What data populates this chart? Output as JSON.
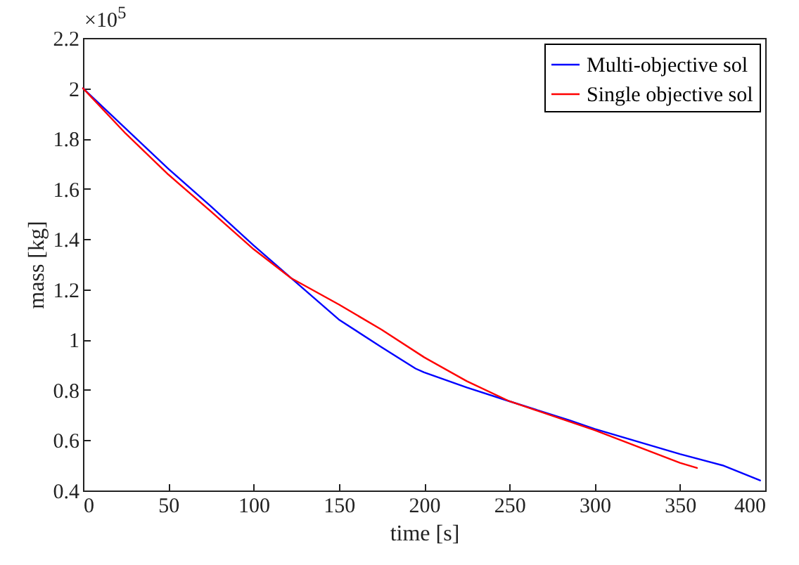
{
  "chart_data": {
    "type": "line",
    "xlabel": "time [s]",
    "ylabel": "mass [kg]",
    "annotations": [
      "×10$^{5}$"
    ],
    "xlim": [
      0,
      400
    ],
    "xticks": [
      0,
      50,
      100,
      150,
      200,
      250,
      300,
      350,
      400
    ],
    "ylim": [
      0.4,
      2.2
    ],
    "yticks": [
      0.4,
      0.6,
      0.8,
      1,
      1.2,
      1.4,
      1.6,
      1.8,
      2,
      2.2
    ],
    "grid": false,
    "legend": "top right",
    "marker": "none",
    "line_style": "solid",
    "series": [
      {
        "name": "Multi-objective sol",
        "color": "#0000ff",
        "x": [
          0,
          25,
          50,
          75,
          100,
          122,
          150,
          175,
          195,
          200,
          225,
          250,
          285,
          300,
          350,
          375,
          397
        ],
        "values": [
          2.0,
          1.84,
          1.68,
          1.53,
          1.375,
          1.245,
          1.08,
          0.97,
          0.885,
          0.87,
          0.81,
          0.755,
          0.68,
          0.645,
          0.545,
          0.5,
          0.44
        ]
      },
      {
        "name": "Single objective sol",
        "color": "#ff0000",
        "x": [
          0,
          25,
          50,
          75,
          100,
          122,
          150,
          175,
          200,
          225,
          250,
          300,
          350,
          360
        ],
        "values": [
          2.0,
          1.82,
          1.657,
          1.51,
          1.36,
          1.245,
          1.14,
          1.04,
          0.93,
          0.835,
          0.755,
          0.64,
          0.51,
          0.49
        ]
      }
    ]
  }
}
